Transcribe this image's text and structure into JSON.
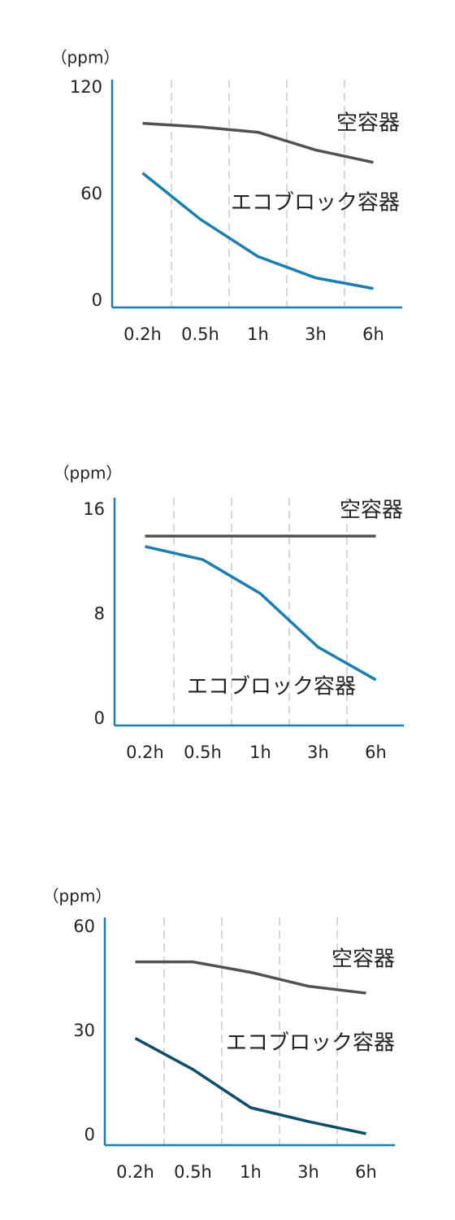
{
  "chart_data": [
    {
      "type": "line",
      "y_label": "（ppm）",
      "categories": [
        "0.2h",
        "0.5h",
        "1h",
        "3h",
        "6h"
      ],
      "ylim": [
        0,
        120
      ],
      "yticks": [
        0,
        60,
        120
      ],
      "series": [
        {
          "name": "空容器",
          "color": "#505050",
          "values": [
            100,
            98,
            95,
            85,
            78
          ]
        },
        {
          "name": "エコブロック容器",
          "color": "#1a7fae",
          "values": [
            72,
            46,
            25,
            13,
            7
          ]
        }
      ]
    },
    {
      "type": "line",
      "y_label": "（ppm）",
      "categories": [
        "0.2h",
        "0.5h",
        "1h",
        "3h",
        "6h"
      ],
      "ylim": [
        0,
        16
      ],
      "yticks": [
        0,
        8,
        16
      ],
      "series": [
        {
          "name": "空容器",
          "color": "#505050",
          "values": [
            14,
            14,
            14,
            14,
            14
          ]
        },
        {
          "name": "エコブロック容器",
          "color": "#1a7fae",
          "values": [
            13.2,
            12.2,
            9.6,
            5.5,
            3
          ]
        }
      ]
    },
    {
      "type": "line",
      "y_label": "（ppm）",
      "categories": [
        "0.2h",
        "0.5h",
        "1h",
        "3h",
        "6h"
      ],
      "ylim": [
        0,
        60
      ],
      "yticks": [
        0,
        30,
        60
      ],
      "series": [
        {
          "name": "空容器",
          "color": "#505050",
          "values": [
            50,
            50,
            47,
            43,
            41
          ]
        },
        {
          "name": "エコブロック容器",
          "color": "#0e4d66",
          "label_color": "#1a7fae",
          "values": [
            28,
            19,
            8,
            4,
            0.5
          ]
        }
      ]
    }
  ]
}
